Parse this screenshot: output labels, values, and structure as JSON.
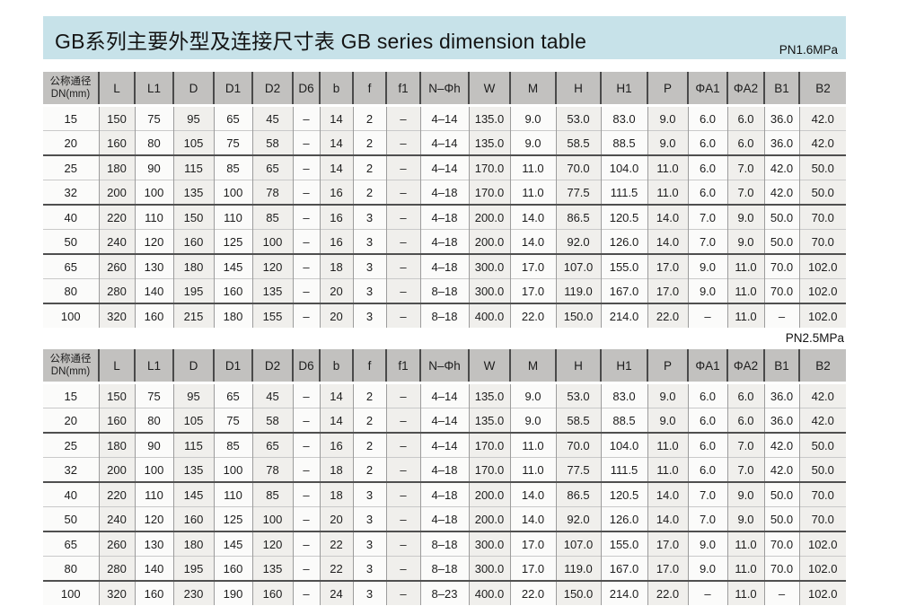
{
  "header": {
    "title": "GB系列主要外型及连接尺寸表 GB series dimension table"
  },
  "tables": [
    {
      "pressure_label": "PN1.6MPa",
      "dn_header": {
        "line1": "公称通径",
        "line2": "DN(mm)"
      },
      "columns": [
        "L",
        "L1",
        "D",
        "D1",
        "D2",
        "D6",
        "b",
        "f",
        "f1",
        "N–Φh",
        "W",
        "M",
        "H",
        "H1",
        "P",
        "ΦA1",
        "ΦA2",
        "B1",
        "B2"
      ],
      "rows": [
        [
          "15",
          "150",
          "75",
          "95",
          "65",
          "45",
          "–",
          "14",
          "2",
          "–",
          "4–14",
          "135.0",
          "9.0",
          "53.0",
          "83.0",
          "9.0",
          "6.0",
          "6.0",
          "36.0",
          "42.0"
        ],
        [
          "20",
          "160",
          "80",
          "105",
          "75",
          "58",
          "–",
          "14",
          "2",
          "–",
          "4–14",
          "135.0",
          "9.0",
          "58.5",
          "88.5",
          "9.0",
          "6.0",
          "6.0",
          "36.0",
          "42.0"
        ],
        [
          "25",
          "180",
          "90",
          "115",
          "85",
          "65",
          "–",
          "14",
          "2",
          "–",
          "4–14",
          "170.0",
          "11.0",
          "70.0",
          "104.0",
          "11.0",
          "6.0",
          "7.0",
          "42.0",
          "50.0"
        ],
        [
          "32",
          "200",
          "100",
          "135",
          "100",
          "78",
          "–",
          "16",
          "2",
          "–",
          "4–18",
          "170.0",
          "11.0",
          "77.5",
          "111.5",
          "11.0",
          "6.0",
          "7.0",
          "42.0",
          "50.0"
        ],
        [
          "40",
          "220",
          "110",
          "150",
          "110",
          "85",
          "–",
          "16",
          "3",
          "–",
          "4–18",
          "200.0",
          "14.0",
          "86.5",
          "120.5",
          "14.0",
          "7.0",
          "9.0",
          "50.0",
          "70.0"
        ],
        [
          "50",
          "240",
          "120",
          "160",
          "125",
          "100",
          "–",
          "16",
          "3",
          "–",
          "4–18",
          "200.0",
          "14.0",
          "92.0",
          "126.0",
          "14.0",
          "7.0",
          "9.0",
          "50.0",
          "70.0"
        ],
        [
          "65",
          "260",
          "130",
          "180",
          "145",
          "120",
          "–",
          "18",
          "3",
          "–",
          "4–18",
          "300.0",
          "17.0",
          "107.0",
          "155.0",
          "17.0",
          "9.0",
          "11.0",
          "70.0",
          "102.0"
        ],
        [
          "80",
          "280",
          "140",
          "195",
          "160",
          "135",
          "–",
          "20",
          "3",
          "–",
          "8–18",
          "300.0",
          "17.0",
          "119.0",
          "167.0",
          "17.0",
          "9.0",
          "11.0",
          "70.0",
          "102.0"
        ],
        [
          "100",
          "320",
          "160",
          "215",
          "180",
          "155",
          "–",
          "20",
          "3",
          "–",
          "8–18",
          "400.0",
          "22.0",
          "150.0",
          "214.0",
          "22.0",
          "–",
          "11.0",
          "–",
          "102.0"
        ]
      ]
    },
    {
      "pressure_label": "PN2.5MPa",
      "dn_header": {
        "line1": "公称通径",
        "line2": "DN(mm)"
      },
      "columns": [
        "L",
        "L1",
        "D",
        "D1",
        "D2",
        "D6",
        "b",
        "f",
        "f1",
        "N–Φh",
        "W",
        "M",
        "H",
        "H1",
        "P",
        "ΦA1",
        "ΦA2",
        "B1",
        "B2"
      ],
      "rows": [
        [
          "15",
          "150",
          "75",
          "95",
          "65",
          "45",
          "–",
          "14",
          "2",
          "–",
          "4–14",
          "135.0",
          "9.0",
          "53.0",
          "83.0",
          "9.0",
          "6.0",
          "6.0",
          "36.0",
          "42.0"
        ],
        [
          "20",
          "160",
          "80",
          "105",
          "75",
          "58",
          "–",
          "14",
          "2",
          "–",
          "4–14",
          "135.0",
          "9.0",
          "58.5",
          "88.5",
          "9.0",
          "6.0",
          "6.0",
          "36.0",
          "42.0"
        ],
        [
          "25",
          "180",
          "90",
          "115",
          "85",
          "65",
          "–",
          "16",
          "2",
          "–",
          "4–14",
          "170.0",
          "11.0",
          "70.0",
          "104.0",
          "11.0",
          "6.0",
          "7.0",
          "42.0",
          "50.0"
        ],
        [
          "32",
          "200",
          "100",
          "135",
          "100",
          "78",
          "–",
          "18",
          "2",
          "–",
          "4–18",
          "170.0",
          "11.0",
          "77.5",
          "111.5",
          "11.0",
          "6.0",
          "7.0",
          "42.0",
          "50.0"
        ],
        [
          "40",
          "220",
          "110",
          "145",
          "110",
          "85",
          "–",
          "18",
          "3",
          "–",
          "4–18",
          "200.0",
          "14.0",
          "86.5",
          "120.5",
          "14.0",
          "7.0",
          "9.0",
          "50.0",
          "70.0"
        ],
        [
          "50",
          "240",
          "120",
          "160",
          "125",
          "100",
          "–",
          "20",
          "3",
          "–",
          "4–18",
          "200.0",
          "14.0",
          "92.0",
          "126.0",
          "14.0",
          "7.0",
          "9.0",
          "50.0",
          "70.0"
        ],
        [
          "65",
          "260",
          "130",
          "180",
          "145",
          "120",
          "–",
          "22",
          "3",
          "–",
          "8–18",
          "300.0",
          "17.0",
          "107.0",
          "155.0",
          "17.0",
          "9.0",
          "11.0",
          "70.0",
          "102.0"
        ],
        [
          "80",
          "280",
          "140",
          "195",
          "160",
          "135",
          "–",
          "22",
          "3",
          "–",
          "8–18",
          "300.0",
          "17.0",
          "119.0",
          "167.0",
          "17.0",
          "9.0",
          "11.0",
          "70.0",
          "102.0"
        ],
        [
          "100",
          "320",
          "160",
          "230",
          "190",
          "160",
          "–",
          "24",
          "3",
          "–",
          "8–23",
          "400.0",
          "22.0",
          "150.0",
          "214.0",
          "22.0",
          "–",
          "11.0",
          "–",
          "102.0"
        ]
      ]
    }
  ]
}
